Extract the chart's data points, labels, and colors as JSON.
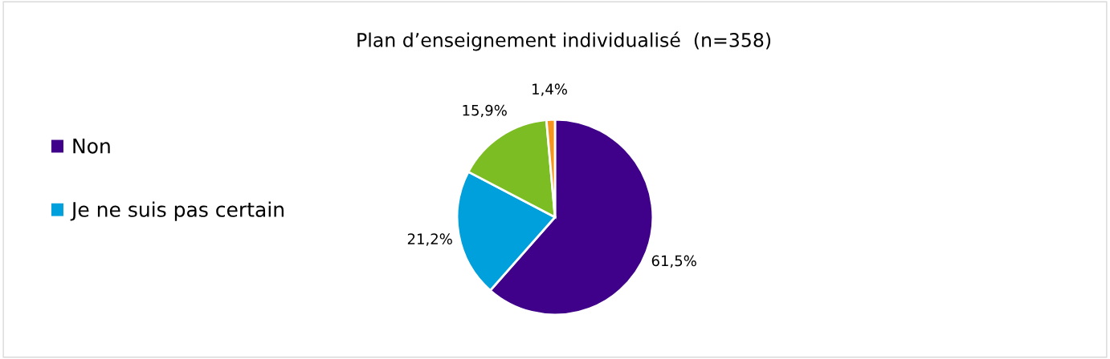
{
  "chart_data": {
    "type": "pie",
    "title": "Plan d’enseignement individualisé  (n=358)",
    "categories": [
      "Non",
      "Je ne suis pas certain",
      null,
      null
    ],
    "values": [
      61.5,
      21.2,
      15.9,
      1.4
    ],
    "colors": [
      "#3f008a",
      "#00a0dc",
      "#7bbd22",
      "#f7941d"
    ],
    "value_labels": [
      "61,5%",
      "21,2%",
      "15,9%",
      "1,4%"
    ],
    "legend": "left"
  }
}
